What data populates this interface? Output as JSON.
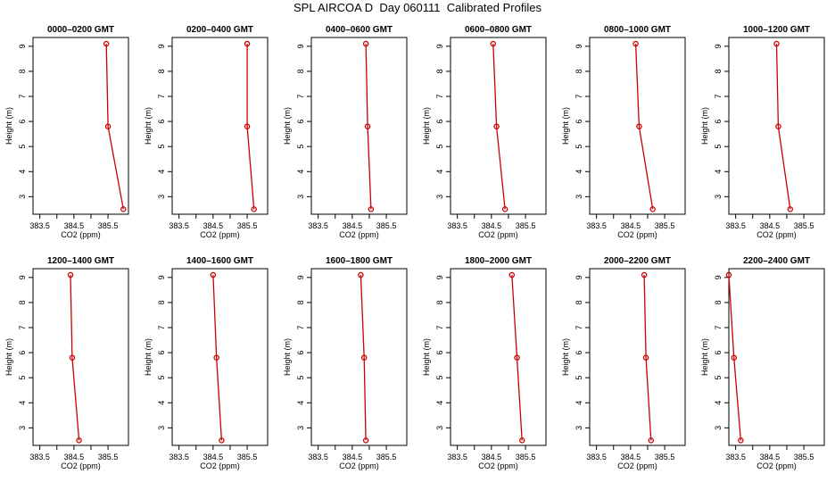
{
  "title": "SPL AIRCOA D  Day 060111  Calibrated Profiles",
  "chart_data": {
    "type": "line",
    "xlabel": "CO2 (ppm)",
    "ylabel": "Height (m)",
    "xlim": [
      383.3,
      386.1
    ],
    "ylim": [
      2.3,
      9.35
    ],
    "xticks": [
      383.5,
      384,
      384.5,
      385,
      385.5
    ],
    "xtick_labels": [
      "383.5",
      "",
      "384.5",
      "",
      "385.5"
    ],
    "yticks": [
      3,
      4,
      5,
      6,
      7,
      8,
      9
    ],
    "marker_heights": [
      9.1,
      5.8,
      2.5
    ],
    "line_color": "#cc0000",
    "grid": false,
    "panels": [
      {
        "title": "0000–0200 GMT",
        "points": [
          [
            385.45,
            9.1
          ],
          [
            385.5,
            5.8
          ],
          [
            385.95,
            2.5
          ]
        ]
      },
      {
        "title": "0200–0400 GMT",
        "points": [
          [
            385.5,
            9.1
          ],
          [
            385.5,
            5.8
          ],
          [
            385.7,
            2.5
          ]
        ]
      },
      {
        "title": "0400–0600 GMT",
        "points": [
          [
            384.9,
            9.1
          ],
          [
            384.95,
            5.8
          ],
          [
            385.05,
            2.5
          ]
        ]
      },
      {
        "title": "0600–0800 GMT",
        "points": [
          [
            384.55,
            9.1
          ],
          [
            384.65,
            5.8
          ],
          [
            384.9,
            2.5
          ]
        ]
      },
      {
        "title": "0800–1000 GMT",
        "points": [
          [
            384.65,
            9.1
          ],
          [
            384.75,
            5.8
          ],
          [
            385.15,
            2.5
          ]
        ]
      },
      {
        "title": "1000–1200 GMT",
        "points": [
          [
            384.7,
            9.1
          ],
          [
            384.75,
            5.8
          ],
          [
            385.1,
            2.5
          ]
        ]
      },
      {
        "title": "1200–1400 GMT",
        "points": [
          [
            384.4,
            9.1
          ],
          [
            384.45,
            5.8
          ],
          [
            384.65,
            2.5
          ]
        ]
      },
      {
        "title": "1400–1600 GMT",
        "points": [
          [
            384.5,
            9.1
          ],
          [
            384.6,
            5.8
          ],
          [
            384.75,
            2.5
          ]
        ]
      },
      {
        "title": "1600–1800 GMT",
        "points": [
          [
            384.75,
            9.1
          ],
          [
            384.85,
            5.8
          ],
          [
            384.9,
            2.5
          ]
        ]
      },
      {
        "title": "1800–2000 GMT",
        "points": [
          [
            385.1,
            9.1
          ],
          [
            385.25,
            5.8
          ],
          [
            385.4,
            2.5
          ]
        ]
      },
      {
        "title": "2000–2200 GMT",
        "points": [
          [
            384.9,
            9.1
          ],
          [
            384.95,
            5.8
          ],
          [
            385.1,
            2.5
          ]
        ]
      },
      {
        "title": "2200–2400 GMT",
        "points": [
          [
            383.3,
            9.1
          ],
          [
            383.45,
            5.8
          ],
          [
            383.65,
            2.5
          ]
        ]
      }
    ]
  }
}
